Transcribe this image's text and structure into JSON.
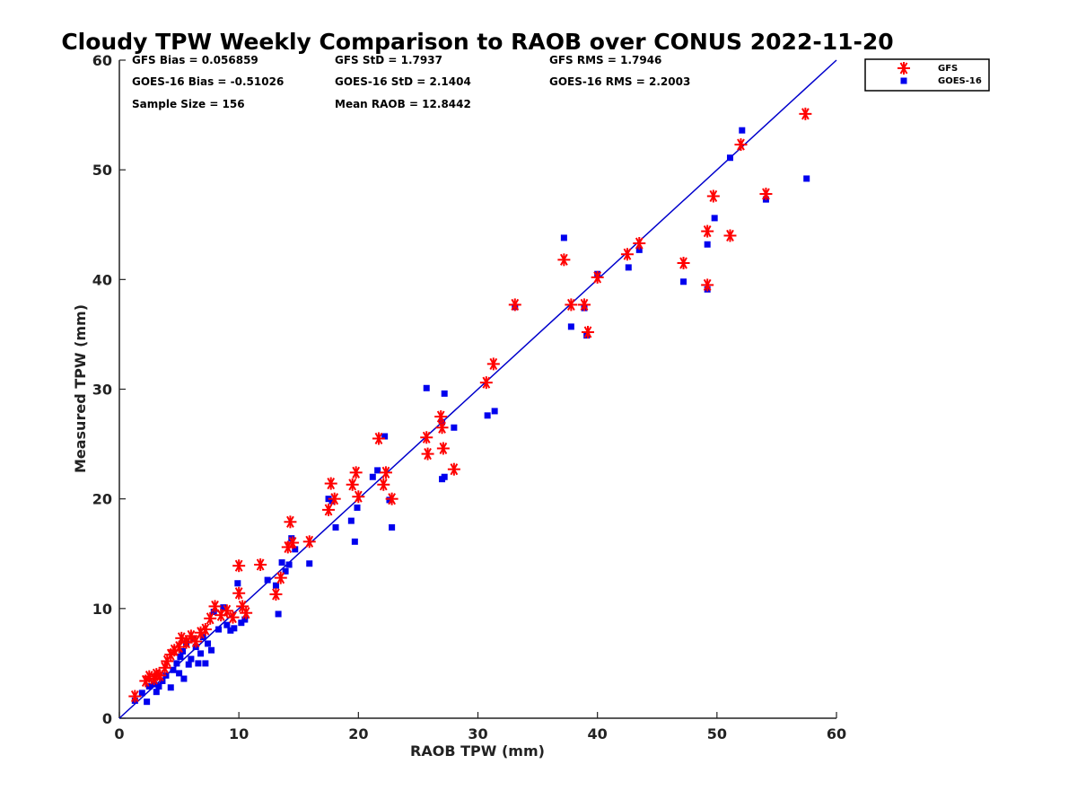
{
  "chart_data": {
    "type": "scatter",
    "title": "Cloudy TPW Weekly Comparison to RAOB over CONUS 2022-11-20",
    "xlabel": "RAOB TPW (mm)",
    "ylabel": "Measured TPW (mm)",
    "xlim": [
      0,
      60
    ],
    "ylim": [
      0,
      60
    ],
    "xticks": [
      "0",
      "10",
      "20",
      "30",
      "40",
      "50",
      "60"
    ],
    "yticks": [
      "0",
      "10",
      "20",
      "30",
      "40",
      "50",
      "60"
    ],
    "grid": false,
    "legend_position": "top-right, outside",
    "stats": {
      "gfs_bias": "GFS Bias = 0.056859",
      "gfs_std": "GFS StD = 1.7937",
      "gfs_rms": "GFS RMS = 1.7946",
      "goes_bias": "GOES-16 Bias = -0.51026",
      "goes_std": "GOES-16 StD = 2.1404",
      "goes_rms": "GOES-16 RMS = 2.2003",
      "sample_size": "Sample Size = 156",
      "mean_raob": "Mean RAOB = 12.8442"
    },
    "reference_line": {
      "from": [
        0,
        0
      ],
      "to": [
        60,
        60
      ],
      "color": "#0000cc"
    },
    "series": [
      {
        "name": "GFS",
        "marker": "asterisk",
        "color": "#ff0000",
        "points": [
          [
            1.3,
            2.0
          ],
          [
            2.2,
            3.4
          ],
          [
            2.5,
            3.8
          ],
          [
            2.9,
            3.6
          ],
          [
            3.1,
            4.0
          ],
          [
            3.4,
            3.9
          ],
          [
            3.8,
            4.6
          ],
          [
            4.0,
            5.2
          ],
          [
            4.3,
            5.8
          ],
          [
            4.6,
            6.2
          ],
          [
            5.0,
            6.5
          ],
          [
            5.2,
            7.3
          ],
          [
            5.6,
            6.9
          ],
          [
            6.0,
            7.5
          ],
          [
            6.4,
            7.0
          ],
          [
            6.8,
            7.8
          ],
          [
            7.2,
            8.1
          ],
          [
            7.6,
            9.1
          ],
          [
            8.0,
            10.2
          ],
          [
            8.5,
            9.4
          ],
          [
            9.0,
            9.8
          ],
          [
            9.5,
            9.2
          ],
          [
            10.0,
            13.9
          ],
          [
            10.0,
            11.4
          ],
          [
            10.3,
            10.2
          ],
          [
            10.6,
            9.6
          ],
          [
            11.8,
            14.0
          ],
          [
            13.1,
            11.3
          ],
          [
            13.5,
            12.8
          ],
          [
            14.1,
            15.6
          ],
          [
            14.3,
            17.9
          ],
          [
            14.5,
            16.0
          ],
          [
            15.9,
            16.1
          ],
          [
            17.5,
            19.0
          ],
          [
            17.7,
            21.4
          ],
          [
            18.0,
            20.0
          ],
          [
            19.5,
            21.3
          ],
          [
            19.8,
            22.4
          ],
          [
            20.0,
            20.2
          ],
          [
            21.7,
            25.5
          ],
          [
            22.1,
            21.3
          ],
          [
            22.3,
            22.4
          ],
          [
            22.8,
            20.0
          ],
          [
            25.7,
            25.6
          ],
          [
            25.8,
            24.1
          ],
          [
            26.9,
            27.5
          ],
          [
            27.0,
            26.5
          ],
          [
            27.1,
            24.6
          ],
          [
            28.0,
            22.7
          ],
          [
            30.7,
            30.6
          ],
          [
            31.3,
            32.3
          ],
          [
            33.1,
            37.7
          ],
          [
            37.2,
            41.8
          ],
          [
            37.8,
            37.7
          ],
          [
            38.9,
            37.7
          ],
          [
            39.2,
            35.2
          ],
          [
            40.0,
            40.2
          ],
          [
            42.5,
            42.3
          ],
          [
            43.5,
            43.3
          ],
          [
            47.2,
            41.5
          ],
          [
            49.2,
            44.4
          ],
          [
            49.2,
            39.5
          ],
          [
            49.7,
            47.6
          ],
          [
            51.1,
            44.0
          ],
          [
            52.0,
            52.3
          ],
          [
            54.1,
            47.8
          ],
          [
            57.4,
            55.1
          ]
        ]
      },
      {
        "name": "GOES-16",
        "marker": "square",
        "color": "#0000ee",
        "points": [
          [
            1.3,
            1.6
          ],
          [
            1.9,
            2.3
          ],
          [
            2.3,
            1.5
          ],
          [
            2.5,
            2.9
          ],
          [
            2.9,
            3.1
          ],
          [
            3.1,
            2.4
          ],
          [
            3.3,
            2.9
          ],
          [
            3.6,
            3.4
          ],
          [
            3.9,
            3.9
          ],
          [
            4.3,
            2.8
          ],
          [
            4.5,
            4.4
          ],
          [
            4.8,
            5.0
          ],
          [
            5.0,
            4.1
          ],
          [
            5.1,
            5.6
          ],
          [
            5.3,
            6.1
          ],
          [
            5.4,
            3.6
          ],
          [
            5.6,
            6.8
          ],
          [
            5.8,
            4.9
          ],
          [
            6.0,
            5.4
          ],
          [
            6.2,
            7.2
          ],
          [
            6.4,
            6.5
          ],
          [
            6.6,
            5.0
          ],
          [
            6.8,
            5.9
          ],
          [
            7.0,
            7.4
          ],
          [
            7.2,
            5.0
          ],
          [
            7.4,
            6.8
          ],
          [
            7.7,
            6.2
          ],
          [
            7.9,
            9.7
          ],
          [
            8.3,
            8.1
          ],
          [
            8.7,
            10.1
          ],
          [
            9.0,
            8.5
          ],
          [
            9.3,
            8.0
          ],
          [
            9.6,
            8.2
          ],
          [
            9.9,
            12.3
          ],
          [
            10.2,
            8.7
          ],
          [
            10.5,
            9.0
          ],
          [
            12.4,
            12.6
          ],
          [
            13.1,
            12.1
          ],
          [
            13.3,
            9.5
          ],
          [
            13.6,
            14.2
          ],
          [
            13.9,
            13.4
          ],
          [
            14.2,
            14.0
          ],
          [
            14.4,
            16.4
          ],
          [
            14.7,
            15.4
          ],
          [
            15.9,
            14.1
          ],
          [
            17.5,
            20.0
          ],
          [
            17.8,
            19.8
          ],
          [
            18.1,
            17.4
          ],
          [
            19.4,
            18.0
          ],
          [
            19.7,
            16.1
          ],
          [
            19.9,
            19.2
          ],
          [
            21.2,
            22.0
          ],
          [
            21.6,
            22.6
          ],
          [
            22.2,
            25.7
          ],
          [
            22.6,
            19.9
          ],
          [
            22.8,
            17.4
          ],
          [
            25.7,
            30.1
          ],
          [
            27.0,
            21.8
          ],
          [
            27.0,
            27.0
          ],
          [
            27.2,
            29.6
          ],
          [
            27.2,
            22.0
          ],
          [
            28.0,
            26.5
          ],
          [
            30.8,
            27.6
          ],
          [
            31.4,
            28.0
          ],
          [
            33.1,
            37.5
          ],
          [
            37.2,
            43.8
          ],
          [
            37.8,
            35.7
          ],
          [
            38.9,
            37.4
          ],
          [
            39.1,
            34.9
          ],
          [
            40.0,
            40.5
          ],
          [
            42.6,
            41.1
          ],
          [
            43.5,
            42.7
          ],
          [
            47.2,
            39.8
          ],
          [
            49.2,
            43.2
          ],
          [
            49.2,
            39.1
          ],
          [
            49.8,
            45.6
          ],
          [
            51.1,
            51.1
          ],
          [
            52.1,
            53.6
          ],
          [
            54.1,
            47.3
          ],
          [
            57.5,
            49.2
          ]
        ]
      }
    ]
  }
}
